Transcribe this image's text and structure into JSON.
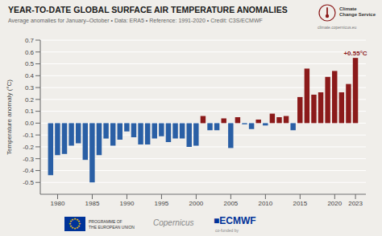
{
  "chart_data": {
    "type": "bar",
    "title": "YEAR-TO-DATE GLOBAL SURFACE AIR TEMPERATURE ANOMALIES",
    "subtitle": "Average anomalies for January–October • Data: ERA5 • Reference: 1991-2020 • Credit: C3S/ECMWF",
    "y_label": "Temperature anomaly (°C)",
    "annotation": "+0.55°C",
    "annotations": [
      "Climate",
      "Change Service",
      "climate.copernicus.eu",
      "★",
      "PROGRAMME OF\nTHE EUROPEAN UNION",
      "Copernicus",
      "co-funded by",
      "■ECMWF"
    ],
    "x": [
      1979,
      1980,
      1981,
      1982,
      1983,
      1984,
      1985,
      1986,
      1987,
      1988,
      1989,
      1990,
      1991,
      1992,
      1993,
      1994,
      1995,
      1996,
      1997,
      1998,
      1999,
      2000,
      2001,
      2002,
      2003,
      2004,
      2005,
      2006,
      2007,
      2008,
      2009,
      2010,
      2011,
      2012,
      2013,
      2014,
      2015,
      2016,
      2017,
      2018,
      2019,
      2020,
      2021,
      2022,
      2023
    ],
    "values": [
      -0.44,
      -0.27,
      -0.26,
      -0.19,
      -0.17,
      -0.31,
      -0.5,
      -0.27,
      -0.13,
      -0.19,
      -0.14,
      -0.07,
      -0.12,
      -0.18,
      -0.18,
      -0.13,
      -0.11,
      -0.16,
      -0.13,
      -0.13,
      -0.2,
      -0.19,
      0.06,
      -0.06,
      -0.06,
      0.04,
      -0.21,
      0.05,
      -0.01,
      -0.05,
      0.03,
      -0.02,
      0.08,
      0.05,
      0.06,
      -0.06,
      0.22,
      0.46,
      0.24,
      0.26,
      0.39,
      0.44,
      0.26,
      0.33,
      0.55
    ],
    "colors": [
      "#2a5fa5",
      "#2a5fa5",
      "#2a5fa5",
      "#2a5fa5",
      "#2a5fa5",
      "#2a5fa5",
      "#2a5fa5",
      "#2a5fa5",
      "#2a5fa5",
      "#2a5fa5",
      "#2a5fa5",
      "#2a5fa5",
      "#2a5fa5",
      "#2a5fa5",
      "#2a5fa5",
      "#2a5fa5",
      "#2a5fa5",
      "#2a5fa5",
      "#2a5fa5",
      "#2a5fa5",
      "#2a5fa5",
      "#2a5fa5",
      "#8b1a1a",
      "#2a5fa5",
      "#2a5fa5",
      "#8b1a1a",
      "#2a5fa5",
      "#8b1a1a",
      "#2a5fa5",
      "#2a5fa5",
      "#8b1a1a",
      "#2a5fa5",
      "#8b1a1a",
      "#8b1a1a",
      "#8b1a1a",
      "#2a5fa5",
      "#8b1a1a",
      "#8b1a1a",
      "#8b1a1a",
      "#8b1a1a",
      "#8b1a1a",
      "#8b1a1a",
      "#8b1a1a",
      "#8b1a1a",
      "#8b1a1a"
    ],
    "xlim": [
      1977.5,
      2024.5
    ],
    "xticks": [
      1980,
      1985,
      1990,
      1995,
      2000,
      2005,
      2010,
      2015,
      2020,
      2023
    ],
    "ylim": [
      -0.6,
      0.7
    ],
    "yticks": [
      -0.5,
      -0.4,
      -0.3,
      -0.2,
      -0.1,
      {
        "value": 0.0,
        "label": "0.0"
      },
      0.1,
      0.2,
      0.3,
      0.4,
      0.5,
      0.6,
      0.7
    ],
    "grid": true
  }
}
